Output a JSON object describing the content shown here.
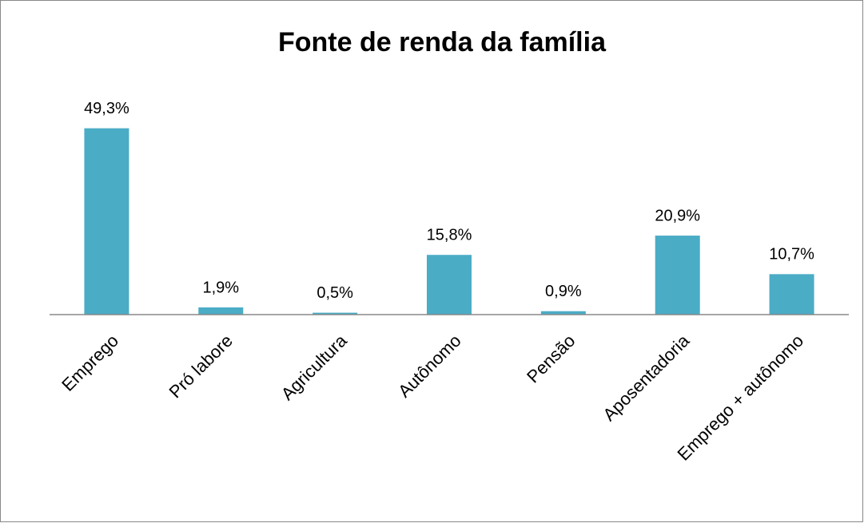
{
  "chart_data": {
    "type": "bar",
    "title": "Fonte de renda da família",
    "categories": [
      "Emprego",
      "Pró labore",
      "Agricultura",
      "Autônomo",
      "Pensão",
      "Aposentadoria",
      "Emprego + autônomo"
    ],
    "values": [
      49.3,
      1.9,
      0.5,
      15.8,
      0.9,
      20.9,
      10.7
    ],
    "value_labels": [
      "49,3%",
      "1,9%",
      "0,5%",
      "15,8%",
      "0,9%",
      "20,9%",
      "10,7%"
    ],
    "color": "#4bacc6",
    "ylim": [
      0,
      60
    ]
  }
}
